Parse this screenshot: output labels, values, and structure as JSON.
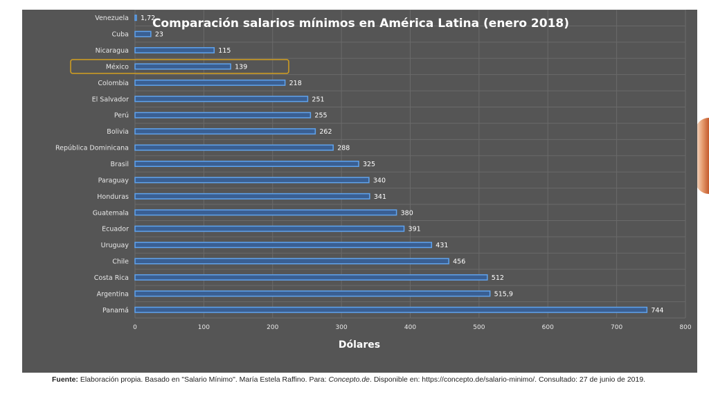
{
  "chart_data": {
    "type": "bar",
    "orientation": "horizontal",
    "title": "Comparación salarios mínimos en América Latina (enero 2018)",
    "xlabel": "Dólares",
    "ylabel": "",
    "xlim": [
      0,
      800
    ],
    "x_ticks": [
      0,
      100,
      200,
      300,
      400,
      500,
      600,
      700,
      800
    ],
    "grid": true,
    "highlighted_category": "México",
    "highlight_color": "#d4a020",
    "bar_color": "#3a5f92",
    "bar_edge_color": "#5fa3ee",
    "categories": [
      "Venezuela",
      "Cuba",
      "Nicaragua",
      "México",
      "Colombia",
      "El Salvador",
      "Perú",
      "Bolivia",
      "República Dominicana",
      "Brasil",
      "Paraguay",
      "Honduras",
      "Guatemala",
      "Ecuador",
      "Uruguay",
      "Chile",
      "Costa Rica",
      "Argentina",
      "Panamá"
    ],
    "values": [
      1.72,
      23,
      115,
      139,
      218,
      251,
      255,
      262,
      288,
      325,
      340,
      341,
      380,
      391,
      431,
      456,
      512,
      515.9,
      744
    ],
    "value_labels": [
      "1,72",
      "23",
      "115",
      "139",
      "218",
      "251",
      "255",
      "262",
      "288",
      "325",
      "340",
      "341",
      "380",
      "391",
      "431",
      "456",
      "512",
      "515,9",
      "744"
    ]
  },
  "source": {
    "prefix": "Fuente:",
    "text1": " Elaboración propia. Basado en \"Salario Mínimo\". María Estela Raffino. Para: ",
    "site": "Concepto.de",
    "text2": ". Disponible en: https://concepto.de/salario-minimo/. Consultado: 27 de junio de 2019."
  }
}
